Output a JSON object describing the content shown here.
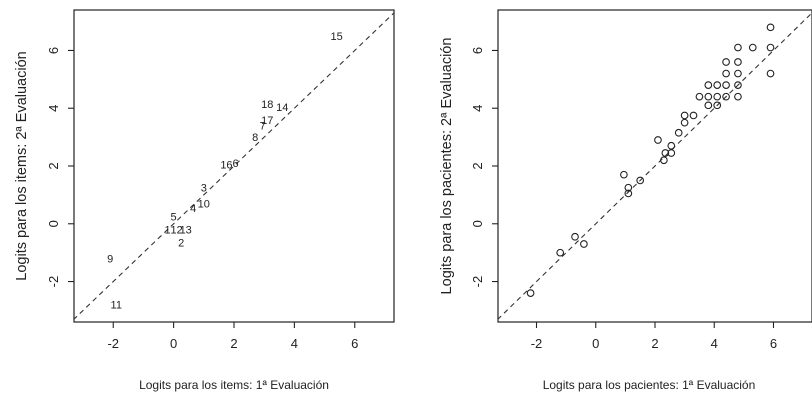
{
  "chart_data": [
    {
      "type": "scatter",
      "xlabel": "Logits para los items: 1ª Evaluación",
      "ylabel": "Logits para los items: 2ª Evaluación",
      "xlim": [
        -3.3,
        7.3
      ],
      "ylim": [
        -3.4,
        7.4
      ],
      "x_ticks": [
        -2,
        0,
        2,
        4,
        6
      ],
      "y_ticks": [
        -2,
        0,
        2,
        4,
        6
      ],
      "reference_line": "dashed identity line (y = x)",
      "marker": "item number labels",
      "points": [
        {
          "label": "15",
          "x": 5.4,
          "y": 6.5
        },
        {
          "label": "18",
          "x": 3.1,
          "y": 4.15
        },
        {
          "label": "14",
          "x": 3.6,
          "y": 4.05
        },
        {
          "label": "17",
          "x": 3.1,
          "y": 3.6
        },
        {
          "label": "7",
          "x": 2.95,
          "y": 3.4
        },
        {
          "label": "8",
          "x": 2.7,
          "y": 3.0
        },
        {
          "label": "16",
          "x": 1.75,
          "y": 2.05
        },
        {
          "label": "6",
          "x": 2.05,
          "y": 2.1
        },
        {
          "label": "3",
          "x": 1.0,
          "y": 1.25
        },
        {
          "label": "10",
          "x": 1.0,
          "y": 0.7
        },
        {
          "label": "4",
          "x": 0.65,
          "y": 0.55
        },
        {
          "label": "5",
          "x": 0.0,
          "y": 0.25
        },
        {
          "label": "1",
          "x": -0.2,
          "y": -0.2
        },
        {
          "label": "12",
          "x": 0.1,
          "y": -0.2
        },
        {
          "label": "13",
          "x": 0.4,
          "y": -0.2
        },
        {
          "label": "2",
          "x": 0.25,
          "y": -0.65
        },
        {
          "label": "9",
          "x": -2.1,
          "y": -1.2
        },
        {
          "label": "11",
          "x": -1.9,
          "y": -2.8
        }
      ]
    },
    {
      "type": "scatter",
      "xlabel": "Logits para los pacientes: 1ª Evaluación",
      "ylabel": "Logits para los pacientes: 2ª Evaluación",
      "xlim": [
        -3.3,
        7.3
      ],
      "ylim": [
        -3.4,
        7.4
      ],
      "x_ticks": [
        -2,
        0,
        2,
        4,
        6
      ],
      "y_ticks": [
        -2,
        0,
        2,
        4,
        6
      ],
      "reference_line": "dashed identity line (y = x)",
      "marker": "open circles",
      "points": [
        {
          "x": -2.2,
          "y": -2.4
        },
        {
          "x": -1.2,
          "y": -1.0
        },
        {
          "x": -0.7,
          "y": -0.45
        },
        {
          "x": -0.4,
          "y": -0.7
        },
        {
          "x": 0.95,
          "y": 1.7
        },
        {
          "x": 1.1,
          "y": 1.25
        },
        {
          "x": 1.1,
          "y": 1.05
        },
        {
          "x": 1.5,
          "y": 1.5
        },
        {
          "x": 2.1,
          "y": 2.9
        },
        {
          "x": 2.3,
          "y": 2.2
        },
        {
          "x": 2.35,
          "y": 2.45
        },
        {
          "x": 2.55,
          "y": 2.45
        },
        {
          "x": 2.55,
          "y": 2.7
        },
        {
          "x": 2.8,
          "y": 3.15
        },
        {
          "x": 3.0,
          "y": 3.5
        },
        {
          "x": 3.0,
          "y": 3.75
        },
        {
          "x": 3.3,
          "y": 3.75
        },
        {
          "x": 3.5,
          "y": 4.4
        },
        {
          "x": 3.8,
          "y": 4.4
        },
        {
          "x": 3.8,
          "y": 4.8
        },
        {
          "x": 3.8,
          "y": 4.1
        },
        {
          "x": 4.1,
          "y": 4.4
        },
        {
          "x": 4.1,
          "y": 4.8
        },
        {
          "x": 4.1,
          "y": 4.1
        },
        {
          "x": 4.4,
          "y": 4.4
        },
        {
          "x": 4.4,
          "y": 4.8
        },
        {
          "x": 4.4,
          "y": 5.2
        },
        {
          "x": 4.4,
          "y": 5.6
        },
        {
          "x": 4.8,
          "y": 4.4
        },
        {
          "x": 4.8,
          "y": 4.8
        },
        {
          "x": 4.8,
          "y": 5.2
        },
        {
          "x": 4.8,
          "y": 5.6
        },
        {
          "x": 4.8,
          "y": 6.1
        },
        {
          "x": 5.3,
          "y": 6.1
        },
        {
          "x": 5.9,
          "y": 5.2
        },
        {
          "x": 5.9,
          "y": 6.1
        },
        {
          "x": 5.9,
          "y": 6.8
        }
      ]
    }
  ]
}
